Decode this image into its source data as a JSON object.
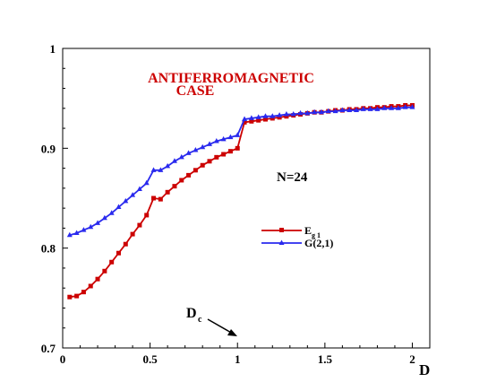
{
  "chart_data": {
    "type": "line",
    "title": "",
    "xlabel": "D",
    "ylabel": "",
    "xlim": [
      0,
      2.1
    ],
    "ylim": [
      0.7,
      1.0
    ],
    "xticks": [
      "0",
      "0.5",
      "1",
      "1.5",
      "2"
    ],
    "xtick_values": [
      0,
      0.5,
      1,
      1.5,
      2
    ],
    "yticks": [
      "0.7",
      "0.8",
      "0.9",
      "1"
    ],
    "ytick_values": [
      0.7,
      0.8,
      0.9,
      1.0
    ],
    "grid": false,
    "legend_position": "center-right",
    "annotations": {
      "case_line1": "ANTIFERROMAGNETIC",
      "case_line2": "CASE",
      "n_label": "N=24",
      "dc_label": "D",
      "dc_sub": "c",
      "dc_arrow_target": [
        0.98,
        0.712
      ]
    },
    "series": [
      {
        "name": "E",
        "name_sub": "g 1",
        "color": "#cc0000",
        "marker": "square",
        "x": [
          0.04,
          0.08,
          0.12,
          0.16,
          0.2,
          0.24,
          0.28,
          0.32,
          0.36,
          0.4,
          0.44,
          0.48,
          0.52,
          0.56,
          0.6,
          0.64,
          0.68,
          0.72,
          0.76,
          0.8,
          0.84,
          0.88,
          0.92,
          0.96,
          1.0,
          1.04,
          1.08,
          1.12,
          1.16,
          1.2,
          1.24,
          1.28,
          1.32,
          1.36,
          1.4,
          1.44,
          1.48,
          1.52,
          1.56,
          1.6,
          1.64,
          1.68,
          1.72,
          1.76,
          1.8,
          1.84,
          1.88,
          1.92,
          1.96,
          2.0
        ],
        "y": [
          0.751,
          0.752,
          0.756,
          0.762,
          0.769,
          0.777,
          0.786,
          0.795,
          0.804,
          0.814,
          0.823,
          0.833,
          0.85,
          0.849,
          0.856,
          0.862,
          0.868,
          0.873,
          0.878,
          0.883,
          0.887,
          0.891,
          0.894,
          0.897,
          0.9,
          0.926,
          0.927,
          0.928,
          0.929,
          0.93,
          0.931,
          0.932,
          0.933,
          0.934,
          0.935,
          0.936,
          0.936,
          0.937,
          0.938,
          0.938,
          0.939,
          0.939,
          0.94,
          0.94,
          0.941,
          0.941,
          0.942,
          0.942,
          0.943,
          0.943
        ]
      },
      {
        "name": "G(2,1)",
        "name_sub": "",
        "color": "#2a2aee",
        "marker": "triangle",
        "x": [
          0.04,
          0.08,
          0.12,
          0.16,
          0.2,
          0.24,
          0.28,
          0.32,
          0.36,
          0.4,
          0.44,
          0.48,
          0.52,
          0.56,
          0.6,
          0.64,
          0.68,
          0.72,
          0.76,
          0.8,
          0.84,
          0.88,
          0.92,
          0.96,
          1.0,
          1.04,
          1.08,
          1.12,
          1.16,
          1.2,
          1.24,
          1.28,
          1.32,
          1.36,
          1.4,
          1.44,
          1.48,
          1.52,
          1.56,
          1.6,
          1.64,
          1.68,
          1.72,
          1.76,
          1.8,
          1.84,
          1.88,
          1.92,
          1.96,
          2.0
        ],
        "y": [
          0.813,
          0.815,
          0.818,
          0.821,
          0.825,
          0.83,
          0.835,
          0.841,
          0.847,
          0.853,
          0.859,
          0.865,
          0.878,
          0.878,
          0.882,
          0.887,
          0.891,
          0.895,
          0.898,
          0.901,
          0.904,
          0.907,
          0.909,
          0.911,
          0.913,
          0.929,
          0.93,
          0.931,
          0.932,
          0.932,
          0.933,
          0.934,
          0.934,
          0.935,
          0.935,
          0.936,
          0.936,
          0.937,
          0.937,
          0.938,
          0.938,
          0.938,
          0.939,
          0.939,
          0.939,
          0.94,
          0.94,
          0.94,
          0.941,
          0.941
        ]
      }
    ]
  }
}
